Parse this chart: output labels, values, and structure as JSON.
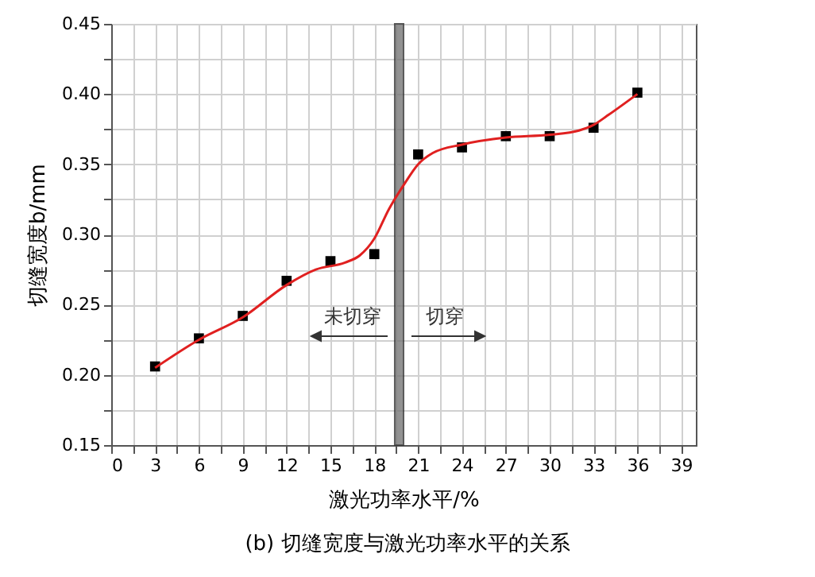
{
  "chart_data": {
    "type": "scatter",
    "xlabel": "激光功率水平/%",
    "ylabel": "切缝宽度b/mm",
    "annotations": [
      "未切穿",
      "切穿",
      "(b) 切缝宽度与激光功率水平的关系"
    ],
    "series": [
      {
        "color": "#000000",
        "marker": "square",
        "x": [
          3,
          6,
          9,
          12,
          15,
          18,
          21,
          24,
          27,
          30,
          33,
          36
        ],
        "values": [
          0.206,
          0.226,
          0.242,
          0.267,
          0.281,
          0.286,
          0.357,
          0.362,
          0.37,
          0.37,
          0.376,
          0.401
        ]
      },
      {
        "type": "line",
        "color": "#e02020",
        "marker": "none",
        "line_style": "solid",
        "x": [
          3,
          6,
          9,
          12,
          14,
          16,
          17,
          18,
          19,
          20,
          21,
          22,
          24,
          27,
          30,
          32,
          33,
          34,
          36
        ],
        "values": [
          0.205,
          0.225,
          0.241,
          0.264,
          0.275,
          0.28,
          0.285,
          0.297,
          0.318,
          0.335,
          0.35,
          0.358,
          0.364,
          0.369,
          0.371,
          0.374,
          0.378,
          0.385,
          0.4
        ]
      }
    ],
    "bands": [
      {
        "axis": "x",
        "from": 19.4,
        "to": 20.0,
        "color": "#777777"
      }
    ],
    "xlim": [
      0,
      40
    ],
    "ylim": [
      0.15,
      0.45
    ],
    "xticks": [
      0,
      {
        "value": 1.5,
        "label": null
      },
      3,
      {
        "value": 4.5,
        "label": null
      },
      6,
      {
        "value": 7.5,
        "label": null
      },
      9,
      {
        "value": 10.5,
        "label": null
      },
      12,
      {
        "value": 13.5,
        "label": null
      },
      15,
      {
        "value": 16.5,
        "label": null
      },
      18,
      {
        "value": 19.5,
        "label": null
      },
      21,
      {
        "value": 22.5,
        "label": null
      },
      24,
      {
        "value": 25.5,
        "label": null
      },
      27,
      {
        "value": 28.5,
        "label": null
      },
      30,
      {
        "value": 31.5,
        "label": null
      },
      33,
      {
        "value": 34.5,
        "label": null
      },
      36,
      {
        "value": 37.5,
        "label": null
      },
      39
    ],
    "yticks": [
      {
        "value": 0.15,
        "label": "0.15"
      },
      {
        "value": 0.175,
        "label": null
      },
      {
        "value": 0.2,
        "label": "0.20"
      },
      {
        "value": 0.225,
        "label": null
      },
      {
        "value": 0.25,
        "label": "0.25"
      },
      {
        "value": 0.275,
        "label": null
      },
      {
        "value": 0.3,
        "label": "0.30"
      },
      {
        "value": 0.325,
        "label": null
      },
      {
        "value": 0.35,
        "label": "0.35"
      },
      {
        "value": 0.375,
        "label": null
      },
      {
        "value": 0.4,
        "label": "0.40"
      },
      {
        "value": 0.425,
        "label": null
      },
      {
        "value": 0.45,
        "label": "0.45"
      }
    ],
    "grid": true
  }
}
